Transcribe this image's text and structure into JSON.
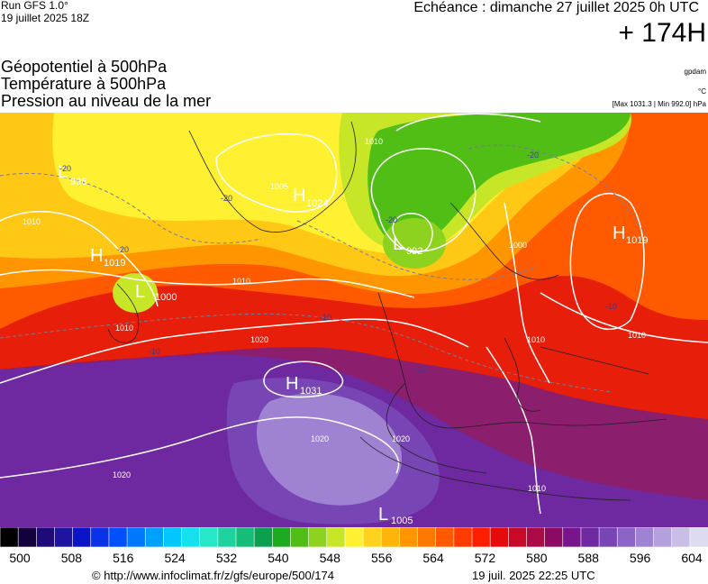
{
  "header": {
    "run": "Run GFS 1.0°",
    "run_date": "19 juillet 2025 18Z",
    "echeance": "Echéance : dimanche 27 juillet 2025 0h UTC",
    "lead": "+ 174H"
  },
  "titles": {
    "line1": "Géopotentiel à 500hPa",
    "line2": "Température à 500hPa",
    "line3": "Pression au niveau de la mer"
  },
  "units": {
    "geopotential": "gpdam",
    "temperature": "°C",
    "pressure_range": "[Max 1031.3 | Min 992.0] hPa"
  },
  "pressure_centers": [
    {
      "type": "L",
      "value": "996"
    },
    {
      "type": "H",
      "value": "1019"
    },
    {
      "type": "L",
      "value": "1000"
    },
    {
      "type": "H",
      "value": "1024"
    },
    {
      "type": "L",
      "value": "992"
    },
    {
      "type": "H",
      "value": "1019"
    },
    {
      "type": "H",
      "value": "1031"
    },
    {
      "type": "L",
      "value": "1005"
    }
  ],
  "isobar_labels": [
    "1010",
    "1010",
    "1010",
    "1020",
    "1020",
    "1020",
    "1020",
    "1010",
    "1000",
    "1010",
    "1005",
    "1010",
    "1010"
  ],
  "temperature_labels": [
    "-20",
    "-20",
    "-20",
    "-20",
    "-20",
    "-10",
    "-10",
    "-10",
    "-10"
  ],
  "color_scale": {
    "ticks": [
      "500",
      "508",
      "516",
      "524",
      "532",
      "540",
      "548",
      "556",
      "564",
      "572",
      "580",
      "588",
      "596",
      "604"
    ],
    "colors": [
      "#000000",
      "#14003c",
      "#1e0a78",
      "#1e14a0",
      "#0a14c8",
      "#0a32e6",
      "#0050ff",
      "#0078ff",
      "#00a0ff",
      "#00c8ff",
      "#14e0f0",
      "#28e6c8",
      "#1ed2a0",
      "#14be78",
      "#0aa050",
      "#1eaa1e",
      "#50be14",
      "#8cd21e",
      "#c8e628",
      "#fff032",
      "#ffd21e",
      "#ffb40a",
      "#ff9600",
      "#ff7800",
      "#ff5a00",
      "#ff3c00",
      "#ff1e00",
      "#e60a0a",
      "#c80a28",
      "#aa0a46",
      "#8c0a64",
      "#78148c",
      "#6e28a0",
      "#7846b4",
      "#8c64c8",
      "#a082d2",
      "#b4a0dc",
      "#c8beE6",
      "#dcdcf0"
    ]
  },
  "footer": {
    "credit": "© http://www.infoclimat.fr/z/gfs/europe/500/174",
    "generated": "19 juil. 2025 22:25 UTC"
  }
}
